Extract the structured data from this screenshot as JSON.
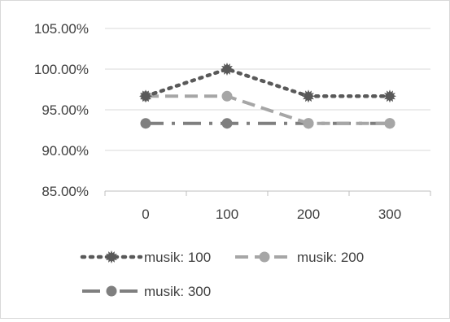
{
  "chart_data": {
    "type": "line",
    "title": "",
    "xlabel": "",
    "ylabel": "",
    "categories": [
      "0",
      "100",
      "200",
      "300"
    ],
    "ylim": [
      0.85,
      1.05
    ],
    "y_ticks": [
      "85.00%",
      "90.00%",
      "95.00%",
      "100.00%",
      "105.00%"
    ],
    "grid": true,
    "legend_position": "bottom",
    "series": [
      {
        "name": "musik: 100",
        "values": [
          0.9667,
          1.0,
          0.9667,
          0.9667
        ],
        "color": "#595959",
        "line_style": "dotted",
        "marker": "star"
      },
      {
        "name": "musik: 200",
        "values": [
          0.9667,
          0.9667,
          0.9333,
          0.9333
        ],
        "color": "#a6a6a6",
        "line_style": "dashed",
        "marker": "circle"
      },
      {
        "name": "musik: 300",
        "values": [
          0.9333,
          0.9333,
          0.9333,
          0.9333
        ],
        "color": "#7f7f7f",
        "line_style": "dash-dot",
        "marker": "circle"
      }
    ]
  }
}
